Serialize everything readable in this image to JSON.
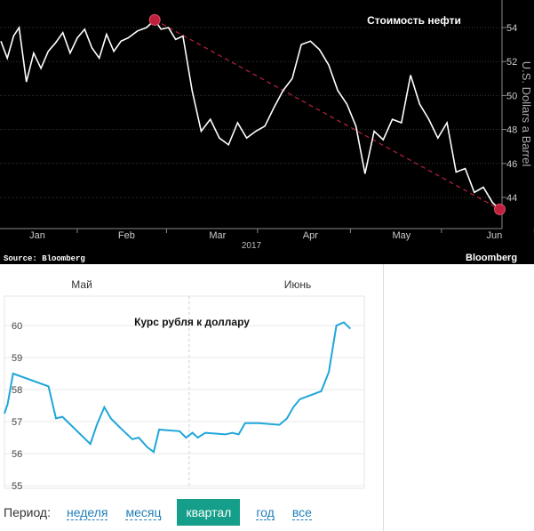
{
  "chart_data": [
    {
      "type": "line",
      "title": "Стоимость нефти",
      "ylabel": "U.S. Dollars a Barrel",
      "xlabel": "2017",
      "background": "#000000",
      "line_color": "#ffffff",
      "trend_color": "#b0203a",
      "ylim": [
        42.5,
        55.5
      ],
      "yticks": [
        44,
        46,
        48,
        50,
        52,
        54
      ],
      "xlim": [
        0,
        25
      ],
      "x_ticks": [
        {
          "x": 2.0,
          "label": "Jan"
        },
        {
          "x": 6.9,
          "label": "Feb"
        },
        {
          "x": 11.9,
          "label": "Mar"
        },
        {
          "x": 17.0,
          "label": "Apr"
        },
        {
          "x": 22.0,
          "label": "May"
        },
        {
          "x": 27.1,
          "label": "Jun"
        }
      ],
      "points": [
        [
          0.0,
          53.2
        ],
        [
          0.35,
          52.2
        ],
        [
          0.7,
          53.5
        ],
        [
          1.0,
          54.0
        ],
        [
          1.4,
          50.8
        ],
        [
          1.8,
          52.5
        ],
        [
          2.2,
          51.6
        ],
        [
          2.6,
          52.6
        ],
        [
          3.0,
          53.1
        ],
        [
          3.4,
          53.7
        ],
        [
          3.8,
          52.5
        ],
        [
          4.2,
          53.4
        ],
        [
          4.6,
          53.9
        ],
        [
          5.0,
          52.8
        ],
        [
          5.4,
          52.2
        ],
        [
          5.8,
          53.6
        ],
        [
          6.2,
          52.6
        ],
        [
          6.6,
          53.2
        ],
        [
          7.0,
          53.4
        ],
        [
          7.5,
          53.8
        ],
        [
          8.0,
          54.0
        ],
        [
          8.45,
          54.45
        ],
        [
          8.8,
          53.9
        ],
        [
          9.2,
          54.0
        ],
        [
          9.6,
          53.3
        ],
        [
          10.0,
          53.5
        ],
        [
          10.5,
          50.3
        ],
        [
          11.0,
          47.9
        ],
        [
          11.5,
          48.6
        ],
        [
          12.0,
          47.5
        ],
        [
          12.5,
          47.1
        ],
        [
          13.0,
          48.4
        ],
        [
          13.5,
          47.5
        ],
        [
          14.0,
          47.9
        ],
        [
          14.5,
          48.2
        ],
        [
          15.0,
          49.3
        ],
        [
          15.5,
          50.3
        ],
        [
          16.0,
          51.0
        ],
        [
          16.5,
          53.0
        ],
        [
          17.0,
          53.2
        ],
        [
          17.5,
          52.7
        ],
        [
          18.0,
          51.8
        ],
        [
          18.5,
          50.3
        ],
        [
          19.0,
          49.5
        ],
        [
          19.5,
          48.2
        ],
        [
          20.0,
          45.4
        ],
        [
          20.5,
          47.9
        ],
        [
          21.0,
          47.4
        ],
        [
          21.5,
          48.6
        ],
        [
          22.0,
          48.4
        ],
        [
          22.5,
          51.2
        ],
        [
          23.0,
          49.5
        ],
        [
          23.5,
          48.6
        ],
        [
          24.0,
          47.5
        ],
        [
          24.5,
          48.4
        ],
        [
          25.0,
          45.5
        ],
        [
          25.5,
          45.7
        ],
        [
          26.0,
          44.3
        ],
        [
          26.5,
          44.6
        ],
        [
          27.0,
          43.7
        ],
        [
          27.4,
          43.3
        ]
      ],
      "start_marker": [
        8.45,
        54.45
      ],
      "end_marker": [
        27.4,
        43.3
      ],
      "source": "Source: Bloomberg",
      "brand": "Bloomberg"
    },
    {
      "type": "line",
      "title": "Курс рубля к доллару",
      "line_color": "#1fa6d9",
      "ylim": [
        54.8,
        60.6
      ],
      "yticks": [
        55,
        56,
        57,
        58,
        59,
        60
      ],
      "x_month_labels": [
        {
          "x": 7.2,
          "label": "Май"
        },
        {
          "x": 27.3,
          "label": "Июнь"
        }
      ],
      "xlim": [
        0,
        33.5
      ],
      "month_divider_x": 17.2,
      "points": [
        [
          0.0,
          57.25
        ],
        [
          0.3,
          57.55
        ],
        [
          0.8,
          58.5
        ],
        [
          4.1,
          58.1
        ],
        [
          4.8,
          57.1
        ],
        [
          5.4,
          57.15
        ],
        [
          8.0,
          56.3
        ],
        [
          8.6,
          56.9
        ],
        [
          9.3,
          57.45
        ],
        [
          9.9,
          57.1
        ],
        [
          10.8,
          56.8
        ],
        [
          11.9,
          56.45
        ],
        [
          12.5,
          56.5
        ],
        [
          13.3,
          56.2
        ],
        [
          13.9,
          56.05
        ],
        [
          14.4,
          56.75
        ],
        [
          16.3,
          56.7
        ],
        [
          16.9,
          56.5
        ],
        [
          17.5,
          56.65
        ],
        [
          18.0,
          56.5
        ],
        [
          18.7,
          56.65
        ],
        [
          20.6,
          56.6
        ],
        [
          21.2,
          56.65
        ],
        [
          21.8,
          56.6
        ],
        [
          22.4,
          56.95
        ],
        [
          23.7,
          56.95
        ],
        [
          25.6,
          56.9
        ],
        [
          26.3,
          57.1
        ],
        [
          26.9,
          57.45
        ],
        [
          27.5,
          57.7
        ],
        [
          29.5,
          57.95
        ],
        [
          30.2,
          58.55
        ],
        [
          30.9,
          60.0
        ],
        [
          31.6,
          60.1
        ],
        [
          32.2,
          59.9
        ]
      ]
    }
  ],
  "period": {
    "label": "Период:",
    "options": [
      "неделя",
      "месяц",
      "квартал",
      "год",
      "все"
    ],
    "active": "квартал"
  }
}
